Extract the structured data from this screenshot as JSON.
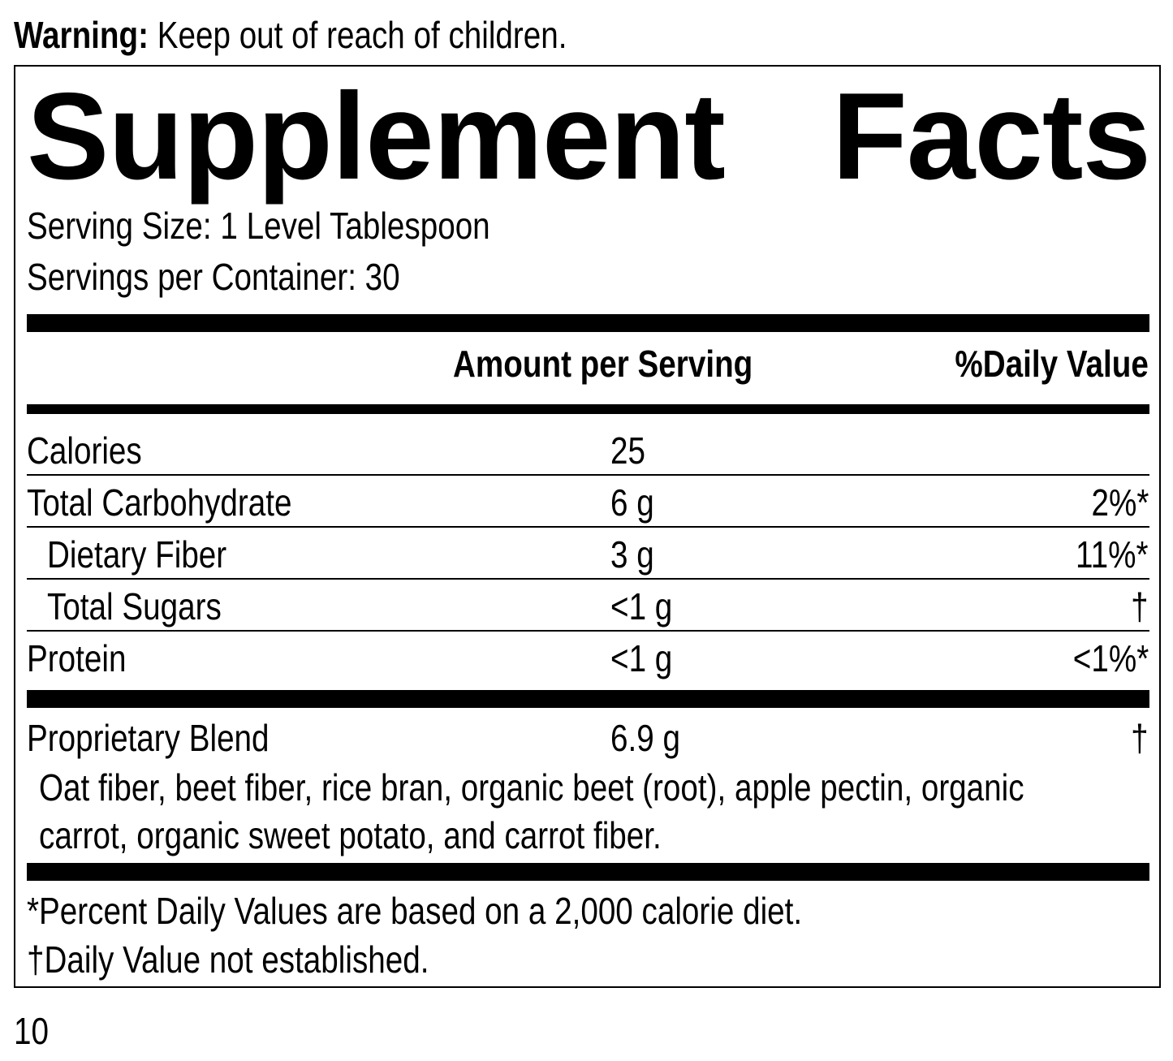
{
  "warning": {
    "label": "Warning:",
    "text": " Keep out of reach of children."
  },
  "title": {
    "word1": "Supplement",
    "word2": "Facts"
  },
  "serving_size": "Serving Size: 1 Level Tablespoon",
  "servings_per_container": "Servings per Container: 30",
  "headers": {
    "amount": "Amount per Serving",
    "dv": "%Daily Value"
  },
  "rows": [
    {
      "name": "Calories",
      "amount": "25",
      "dv": ""
    },
    {
      "name": "Total Carbohydrate",
      "amount": "6 g",
      "dv": "2%*"
    },
    {
      "name": "Dietary Fiber",
      "amount": "3 g",
      "dv": "11%*"
    },
    {
      "name": "Total Sugars",
      "amount": "<1 g",
      "dv": "†"
    },
    {
      "name": "Protein",
      "amount": "<1 g",
      "dv": "<1%*"
    }
  ],
  "blend": {
    "name": "Proprietary Blend",
    "amount": "6.9 g",
    "dv": "†",
    "ingredients_line1": "Oat fiber, beet fiber, rice bran, organic beet (root), apple pectin, organic",
    "ingredients_line2": "carrot, organic sweet potato, and carrot fiber."
  },
  "footnotes": [
    "*Percent Daily Values are based on a 2,000 calorie diet.",
    "†Daily Value not established."
  ],
  "page_number": "10"
}
